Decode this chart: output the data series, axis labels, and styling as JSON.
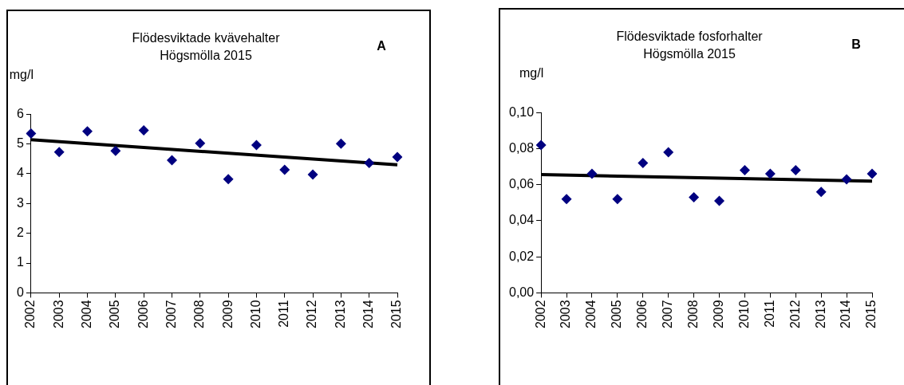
{
  "chart_data": [
    {
      "type": "scatter",
      "title": "Flödesviktade kvävehalter\nHögsmölla 2015",
      "ylabel": "mg/l",
      "annotations": [
        "A"
      ],
      "categories": [
        "2002",
        "2003",
        "2004",
        "2005",
        "2006",
        "2007",
        "2008",
        "2009",
        "2010",
        "2011",
        "2012",
        "2013",
        "2014",
        "2015"
      ],
      "series": [
        {
          "type": "scatter",
          "color": "#000080",
          "marker": "diamond",
          "values": [
            5.35,
            4.73,
            5.42,
            4.77,
            5.46,
            4.45,
            5.02,
            3.82,
            4.96,
            4.13,
            3.97,
            5.01,
            4.36,
            4.56
          ]
        },
        {
          "type": "line",
          "color": "#000000",
          "marker": "none",
          "line_style": "solid",
          "values": [
            5.14,
            null,
            null,
            null,
            null,
            null,
            null,
            null,
            null,
            null,
            null,
            null,
            null,
            4.3
          ]
        }
      ],
      "ylim": [
        0,
        6
      ],
      "yticks": [
        0,
        1,
        2,
        3,
        4,
        5,
        6
      ],
      "grid": false,
      "legend": false
    },
    {
      "type": "scatter",
      "title": "Flödesviktade fosforhalter\nHögsmölla 2015",
      "ylabel": "mg/l",
      "annotations": [
        "B"
      ],
      "categories": [
        "2002",
        "2003",
        "2004",
        "2005",
        "2006",
        "2007",
        "2008",
        "2009",
        "2010",
        "2011",
        "2012",
        "2013",
        "2014",
        "2015"
      ],
      "series": [
        {
          "type": "scatter",
          "color": "#000080",
          "marker": "diamond",
          "values": [
            0.082,
            0.052,
            0.066,
            0.052,
            0.072,
            0.078,
            0.053,
            0.051,
            0.068,
            0.066,
            0.068,
            0.056,
            0.063,
            0.066
          ]
        },
        {
          "type": "line",
          "color": "#000000",
          "marker": "none",
          "line_style": "solid",
          "values": [
            0.0656,
            null,
            null,
            null,
            null,
            null,
            null,
            null,
            null,
            null,
            null,
            null,
            null,
            0.062
          ]
        }
      ],
      "ylim": [
        0,
        0.1
      ],
      "yticks": [
        {
          "value": 0,
          "label": "0,00"
        },
        {
          "value": 0.02,
          "label": "0,02"
        },
        {
          "value": 0.04,
          "label": "0,04"
        },
        {
          "value": 0.06,
          "label": "0,06"
        },
        {
          "value": 0.08,
          "label": "0,08"
        },
        {
          "value": 0.1,
          "label": "0,10"
        }
      ],
      "grid": false,
      "legend": false
    }
  ]
}
